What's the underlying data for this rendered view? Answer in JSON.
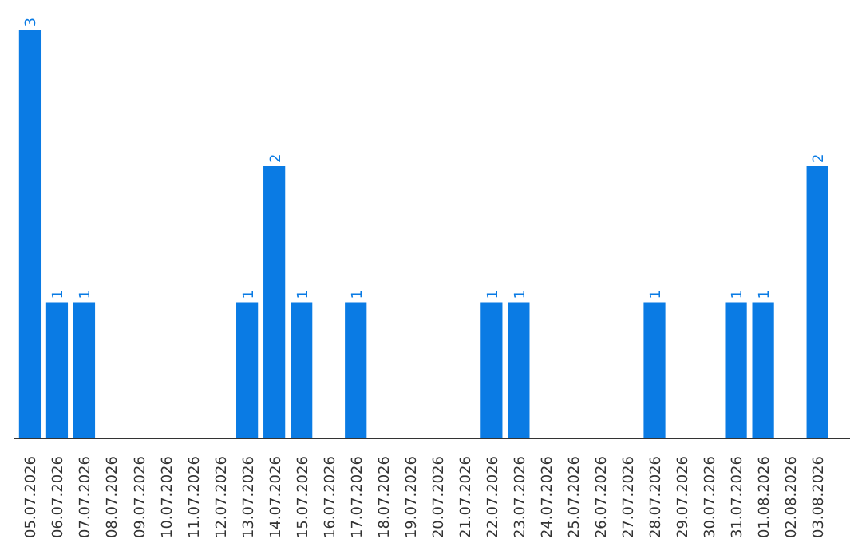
{
  "chart_data": {
    "type": "bar",
    "categories": [
      "05.07.2026",
      "06.07.2026",
      "07.07.2026",
      "08.07.2026",
      "09.07.2026",
      "10.07.2026",
      "11.07.2026",
      "12.07.2026",
      "13.07.2026",
      "14.07.2026",
      "15.07.2026",
      "16.07.2026",
      "17.07.2026",
      "18.07.2026",
      "19.07.2026",
      "20.07.2026",
      "21.07.2026",
      "22.07.2026",
      "23.07.2026",
      "24.07.2026",
      "25.07.2026",
      "26.07.2026",
      "27.07.2026",
      "28.07.2026",
      "29.07.2026",
      "30.07.2026",
      "31.07.2026",
      "01.08.2026",
      "02.08.2026",
      "03.08.2026"
    ],
    "values": [
      3,
      1,
      1,
      0,
      0,
      0,
      0,
      0,
      1,
      2,
      1,
      0,
      1,
      0,
      0,
      0,
      0,
      1,
      1,
      0,
      0,
      0,
      0,
      1,
      0,
      0,
      1,
      1,
      0,
      2
    ],
    "value_labels": [
      "3",
      "1",
      "1",
      null,
      null,
      null,
      null,
      null,
      "1",
      "2",
      "1",
      null,
      "1",
      null,
      null,
      null,
      null,
      "1",
      "1",
      null,
      null,
      null,
      null,
      "1",
      null,
      null,
      "1",
      "1",
      null,
      "2"
    ],
    "color": "#0a7be4",
    "grid": false
  }
}
